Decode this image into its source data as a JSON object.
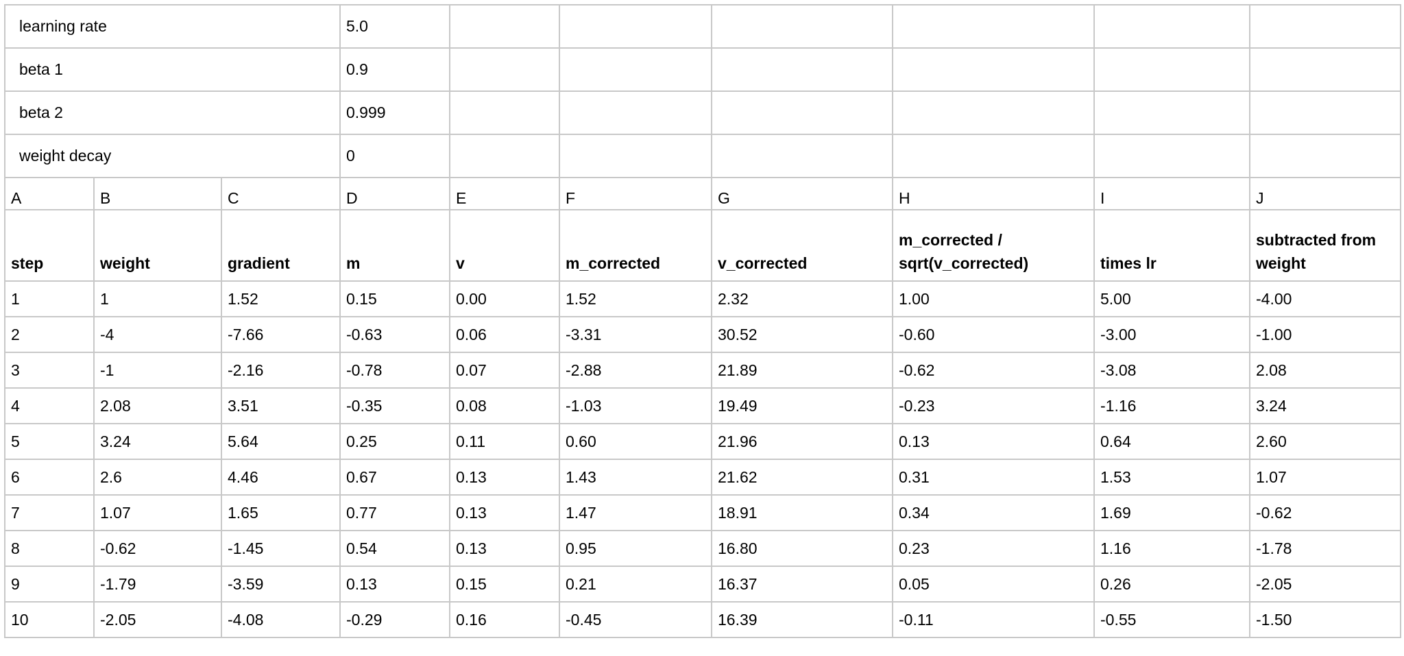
{
  "params": [
    {
      "label": "learning rate",
      "value": "5.0"
    },
    {
      "label": "beta 1",
      "value": "0.9"
    },
    {
      "label": "beta 2",
      "value": "0.999"
    },
    {
      "label": "weight decay",
      "value": "0"
    }
  ],
  "column_letters": [
    "A",
    "B",
    "C",
    "D",
    "E",
    "F",
    "G",
    "H",
    "I",
    "J"
  ],
  "headers": [
    "step",
    "weight",
    "gradient",
    "m",
    "v",
    "m_corrected",
    "v_corrected",
    "m_corrected / sqrt(v_corrected)",
    "times lr",
    "subtracted from weight"
  ],
  "rows": [
    [
      "1",
      "1",
      "1.52",
      "0.15",
      "0.00",
      "1.52",
      "2.32",
      "1.00",
      "5.00",
      "-4.00"
    ],
    [
      "2",
      "-4",
      "-7.66",
      "-0.63",
      "0.06",
      "-3.31",
      "30.52",
      "-0.60",
      "-3.00",
      "-1.00"
    ],
    [
      "3",
      "-1",
      "-2.16",
      "-0.78",
      "0.07",
      "-2.88",
      "21.89",
      "-0.62",
      "-3.08",
      "2.08"
    ],
    [
      "4",
      "2.08",
      "3.51",
      "-0.35",
      "0.08",
      "-1.03",
      "19.49",
      "-0.23",
      "-1.16",
      "3.24"
    ],
    [
      "5",
      "3.24",
      "5.64",
      "0.25",
      "0.11",
      "0.60",
      "21.96",
      "0.13",
      "0.64",
      "2.60"
    ],
    [
      "6",
      "2.6",
      "4.46",
      "0.67",
      "0.13",
      "1.43",
      "21.62",
      "0.31",
      "1.53",
      "1.07"
    ],
    [
      "7",
      "1.07",
      "1.65",
      "0.77",
      "0.13",
      "1.47",
      "18.91",
      "0.34",
      "1.69",
      "-0.62"
    ],
    [
      "8",
      "-0.62",
      "-1.45",
      "0.54",
      "0.13",
      "0.95",
      "16.80",
      "0.23",
      "1.16",
      "-1.78"
    ],
    [
      "9",
      "-1.79",
      "-3.59",
      "0.13",
      "0.15",
      "0.21",
      "16.37",
      "0.05",
      "0.26",
      "-2.05"
    ],
    [
      "10",
      "-2.05",
      "-4.08",
      "-0.29",
      "0.16",
      "-0.45",
      "16.39",
      "-0.11",
      "-0.55",
      "-1.50"
    ]
  ]
}
